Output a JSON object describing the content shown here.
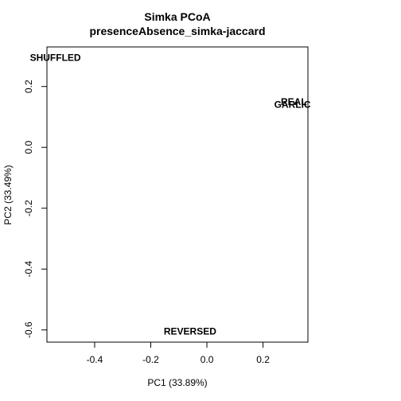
{
  "chart_data": {
    "type": "scatter",
    "title": "Simka PCoA",
    "subtitle": "presenceAbsence_simka-jaccard",
    "xlabel": "PC1 (33.89%)",
    "ylabel": "PC2 (33.49%)",
    "xlim": [
      -0.57,
      0.36
    ],
    "ylim": [
      -0.64,
      0.33
    ],
    "xticks": [
      -0.4,
      -0.2,
      0.0,
      0.2
    ],
    "yticks": [
      -0.6,
      -0.4,
      -0.2,
      0.0,
      0.2
    ],
    "grid": false,
    "points": [
      {
        "label": "SHUFFLED",
        "x": -0.54,
        "y": 0.295
      },
      {
        "label": "REAL",
        "x": 0.31,
        "y": 0.15
      },
      {
        "label": "GARLIC",
        "x": 0.305,
        "y": 0.14
      },
      {
        "label": "REVERSED",
        "x": -0.06,
        "y": -0.605
      }
    ]
  }
}
